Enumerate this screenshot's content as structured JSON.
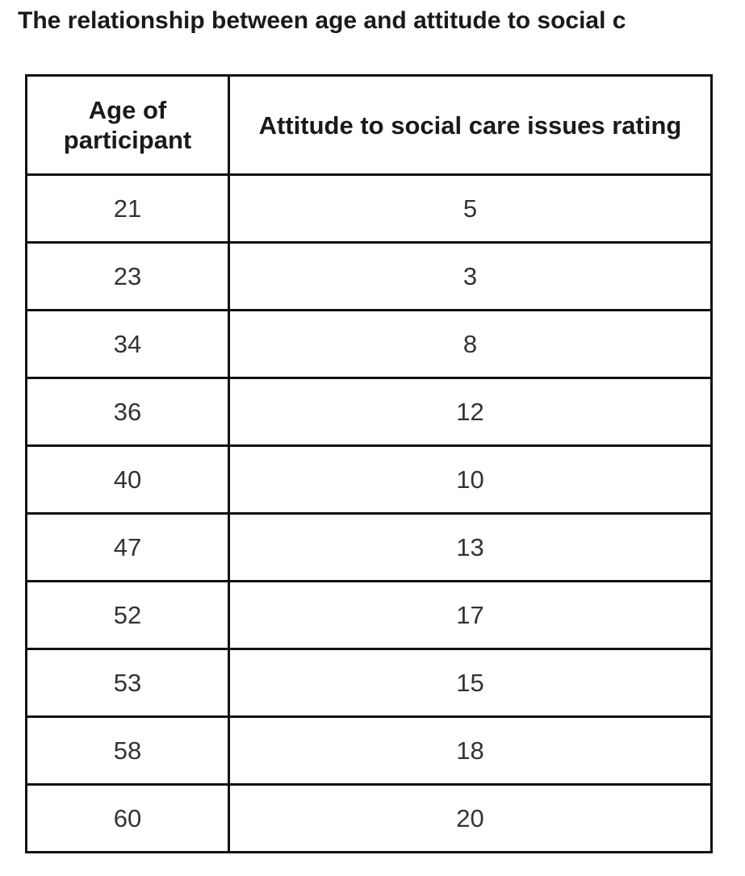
{
  "title": "The relationship between age and attitude to social c",
  "table": {
    "headers": {
      "age": "Age of participant",
      "rating": "Attitude to social care issues rating"
    },
    "rows": [
      {
        "age": "21",
        "rating": "5"
      },
      {
        "age": "23",
        "rating": "3"
      },
      {
        "age": "34",
        "rating": "8"
      },
      {
        "age": "36",
        "rating": "12"
      },
      {
        "age": "40",
        "rating": "10"
      },
      {
        "age": "47",
        "rating": "13"
      },
      {
        "age": "52",
        "rating": "17"
      },
      {
        "age": "53",
        "rating": "15"
      },
      {
        "age": "58",
        "rating": "18"
      },
      {
        "age": "60",
        "rating": "20"
      }
    ]
  }
}
